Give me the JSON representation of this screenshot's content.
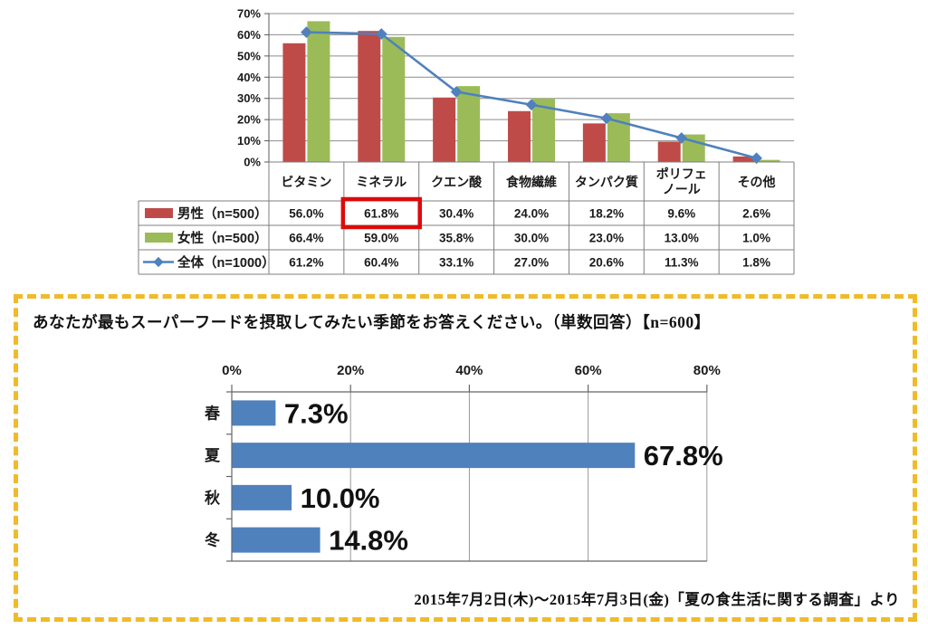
{
  "colors": {
    "male_bar": "#BE4B48",
    "female_bar": "#9BBB59",
    "total_line": "#4F81BD",
    "season_bar": "#4F81BD",
    "highlight_box": "#DD0A0A",
    "panel_border": "#EFBB2A"
  },
  "chart_data": [
    {
      "name": "superfood-nutrient-expectations",
      "type": "bar+line with data table",
      "categories": [
        "ビタミン",
        "ミネラル",
        "クエン酸",
        "食物繊維",
        "タンパク質",
        "ポリフェノール",
        "その他"
      ],
      "categories_wrapped": [
        [
          "ビタミン"
        ],
        [
          "ミネラル"
        ],
        [
          "クエン酸"
        ],
        [
          "食物繊維"
        ],
        [
          "タンパク質"
        ],
        [
          "ポリフェ",
          "ノール"
        ],
        [
          "その他"
        ]
      ],
      "series": [
        {
          "name": "男性（n=500）",
          "type": "bar",
          "color": "#BE4B48",
          "values": [
            56.0,
            61.8,
            30.4,
            24.0,
            18.2,
            9.6,
            2.6
          ],
          "value_labels": [
            "56.0%",
            "61.8%",
            "30.4%",
            "24.0%",
            "18.2%",
            "9.6%",
            "2.6%"
          ]
        },
        {
          "name": "女性（n=500）",
          "type": "bar",
          "color": "#9BBB59",
          "values": [
            66.4,
            59.0,
            35.8,
            30.0,
            23.0,
            13.0,
            1.0
          ],
          "value_labels": [
            "66.4%",
            "59.0%",
            "35.8%",
            "30.0%",
            "23.0%",
            "13.0%",
            "1.0%"
          ]
        },
        {
          "name": "全体（n=1000）",
          "type": "line",
          "color": "#4F81BD",
          "values": [
            61.2,
            60.4,
            33.1,
            27.0,
            20.6,
            11.3,
            1.8
          ],
          "value_labels": [
            "61.2%",
            "60.4%",
            "33.1%",
            "27.0%",
            "20.6%",
            "11.3%",
            "1.8%"
          ]
        }
      ],
      "y_axis": {
        "min": 0,
        "max": 70,
        "step": 10,
        "tick_labels": [
          "0%",
          "10%",
          "20%",
          "30%",
          "40%",
          "50%",
          "60%",
          "70%"
        ]
      },
      "grid": "horizontal",
      "legend_position": "table-left",
      "highlight_cell": {
        "series_index": 0,
        "category_index": 1,
        "value_label": "61.8%",
        "color": "#DD0A0A"
      }
    },
    {
      "name": "season-preference",
      "type": "bar",
      "orientation": "horizontal",
      "title": "あなたが最もスーパーフードを摂取してみたい季節をお答えください。（単数回答）【n=600】",
      "categories": [
        "春",
        "夏",
        "秋",
        "冬"
      ],
      "values": [
        7.3,
        67.8,
        10.0,
        14.8
      ],
      "value_labels": [
        "7.3%",
        "67.8%",
        "10.0%",
        "14.8%"
      ],
      "x_axis": {
        "min": 0,
        "max": 80,
        "step": 20,
        "tick_labels": [
          "0%",
          "20%",
          "40%",
          "60%",
          "80%"
        ],
        "position": "top"
      },
      "grid": "vertical",
      "source": "2015年7月2日(木)～2015年7月3日(金)「夏の食生活に関する調査」より"
    }
  ]
}
